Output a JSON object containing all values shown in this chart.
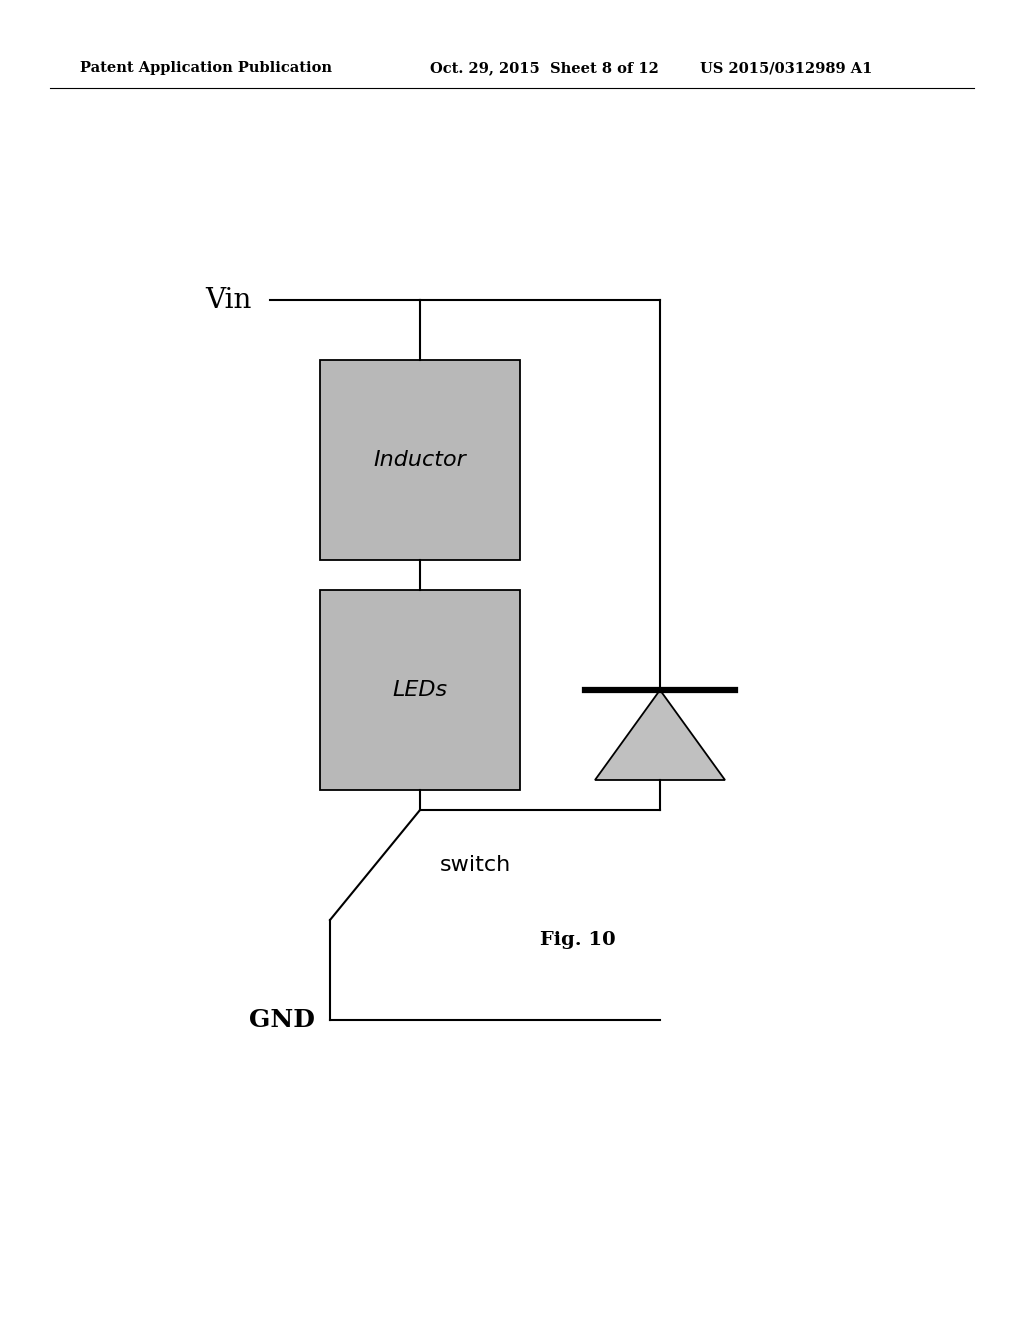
{
  "bg_color": "#ffffff",
  "header_left": "Patent Application Publication",
  "header_center": "Oct. 29, 2015  Sheet 8 of 12",
  "header_right": "US 2015/0312989 A1",
  "header_fontsize": 10.5,
  "fig_label": "Fig. 10",
  "vin_label": "Vin",
  "gnd_label": "GND",
  "switch_label": "switch",
  "inductor_label": "Inductor",
  "leds_label": "LEDs",
  "box_facecolor": "#b8b8b8",
  "line_color": "#000000",
  "line_width": 1.5,
  "diode_facecolor": "#c0c0c0"
}
